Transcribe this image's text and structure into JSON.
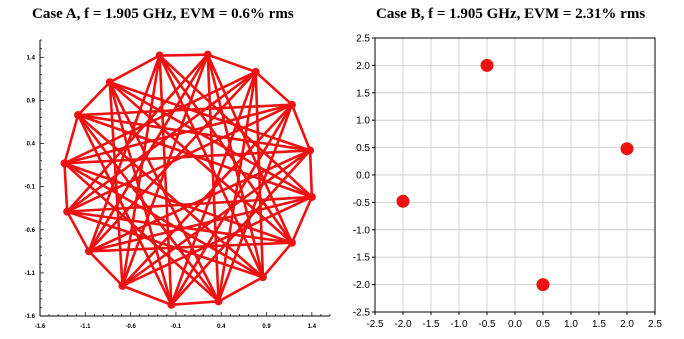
{
  "chart_data": [
    {
      "type": "line",
      "title": "Case A, f = 1.905 GHz, EVM = 0.6% rms",
      "xlim": [
        -1.6,
        1.6
      ],
      "ylim": [
        -1.6,
        1.6
      ],
      "xticks": [
        "-1.6",
        "-1.1",
        "-0.6",
        "-0.1",
        "0.4",
        "0.9",
        "1.4"
      ],
      "yticks": [
        "1.4",
        "0.9",
        "0.4",
        "-0.1",
        "-0.6",
        "-1.1",
        "-1.6"
      ],
      "grid": false,
      "series_color": "#ee1111",
      "points": [
        {
          "x": 0.25,
          "y": 1.43
        },
        {
          "x": 0.78,
          "y": 1.23
        },
        {
          "x": 1.18,
          "y": 0.85
        },
        {
          "x": 1.38,
          "y": 0.32
        },
        {
          "x": 1.4,
          "y": -0.22
        },
        {
          "x": 1.18,
          "y": -0.75
        },
        {
          "x": 0.86,
          "y": -1.15
        },
        {
          "x": 0.37,
          "y": -1.43
        },
        {
          "x": -0.15,
          "y": -1.47
        },
        {
          "x": -0.69,
          "y": -1.25
        },
        {
          "x": -1.06,
          "y": -0.85
        },
        {
          "x": -1.3,
          "y": -0.39
        },
        {
          "x": -1.33,
          "y": 0.17
        },
        {
          "x": -1.18,
          "y": 0.73
        },
        {
          "x": -0.83,
          "y": 1.11
        },
        {
          "x": -0.28,
          "y": 1.42
        }
      ],
      "step_pattern": [
        5,
        6,
        7
      ]
    },
    {
      "type": "scatter",
      "title": "Case B, f = 1.905 GHz, EVM = 2.31% rms",
      "xlim": [
        -2.5,
        2.5
      ],
      "ylim": [
        -2.5,
        2.5
      ],
      "xticks": [
        "-2.5",
        "-2.0",
        "-1.5",
        "-1.0",
        "-0.5",
        "0.0",
        "0.5",
        "1.0",
        "1.5",
        "2.0",
        "2.5"
      ],
      "yticks": [
        "2.5",
        "2.0",
        "1.5",
        "1.0",
        "0.5",
        "0.0",
        "-0.5",
        "-1.0",
        "-1.5",
        "-2.0",
        "-2.5"
      ],
      "grid": true,
      "marker_color": "#ee1111",
      "points": [
        {
          "x": -0.5,
          "y": 2.0
        },
        {
          "x": 2.0,
          "y": 0.48
        },
        {
          "x": 0.5,
          "y": -2.0
        },
        {
          "x": -2.0,
          "y": -0.48
        }
      ]
    }
  ]
}
